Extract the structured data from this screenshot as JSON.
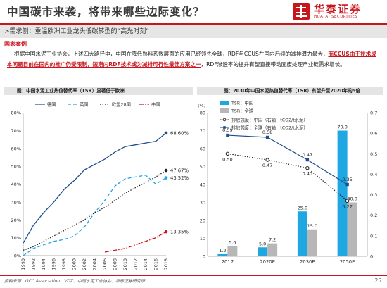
{
  "header": {
    "title": "中国碳市来袭，将带来哪些边际变化？",
    "logo_cn": "华泰证券",
    "logo_en": "HUATAI SECURITIES",
    "subheader": ">需求侧：重温欧洲工业龙头低碳转型的“高光时刻”"
  },
  "section": {
    "label": "国家案例",
    "para_1": "根据中国水泥工业协会，上述四大路径中，中国在降低熟料系数层面的应用已经领先全球，RDF与CCUS在国内后续的减排潜力最大，",
    "para_hl": "而CCUS由于技术成本问题目前在国内的推广仍受限制，短期内RDF技术或为减排可行性最佳方案之一",
    "para_2": "，RDF渗透率的提升有望直接带动固废处理产业链需求增长。"
  },
  "colors": {
    "red": "#c8161d",
    "navy": "#1f4e8c",
    "cyan": "#1ea7e1",
    "gray": "#b7b7b7",
    "black": "#222222"
  },
  "left_chart": {
    "title": "图：中国水泥工业热值替代率（TSR）显著低于欧洲"
  },
  "right_chart": {
    "title": "图：2030年中国水泥热值替代率（TSR）有望升至2020年的5倍"
  },
  "footer": {
    "source": "资料来源：GCC Association、VDZ、中国水泥工业协会、华泰证券研究所",
    "page": "25"
  },
  "chart_data": [
    {
      "type": "line",
      "title": "图：中国水泥工业热值替代率（TSR）显著低于欧洲",
      "x": [
        1990,
        1992,
        1994,
        1996,
        1998,
        2000,
        2002,
        2004,
        2006,
        2008,
        2010,
        2012,
        2014,
        2016,
        2018
      ],
      "ylim": [
        0,
        80
      ],
      "yticks": [
        "0%",
        "10%",
        "20%",
        "30%",
        "40%",
        "50%",
        "60%",
        "70%",
        "80%"
      ],
      "series": [
        {
          "name": "德国",
          "color": "#1f4e8c",
          "style": "solid",
          "values": [
            7,
            17,
            24,
            30,
            37,
            42,
            48,
            51,
            54,
            58,
            61,
            62,
            63,
            64,
            68.6
          ],
          "end_label": "68.60%"
        },
        {
          "name": "英国",
          "color": "#1ea7e1",
          "style": "dash",
          "values": [
            0,
            4,
            6,
            8,
            9,
            11,
            16,
            24,
            31,
            39,
            43,
            44,
            45,
            40,
            43.52
          ],
          "end_label": "43.52%"
        },
        {
          "name": "欧盟28国",
          "color": "#222222",
          "style": "dot",
          "values": [
            3,
            5,
            8,
            11,
            14,
            17,
            20,
            24,
            27,
            31,
            35,
            38,
            41,
            44,
            47.67
          ],
          "end_label": "47.67%"
        },
        {
          "name": "中国",
          "color": "#c8161d",
          "style": "dashdot",
          "values": [
            null,
            null,
            null,
            null,
            null,
            null,
            null,
            null,
            2,
            3,
            4,
            6,
            8,
            10,
            13.35
          ],
          "end_label": "13.35%"
        }
      ]
    },
    {
      "type": "bar",
      "title": "图：2030年中国水泥热值替代率（TSR）有望升至2020年的5倍",
      "categories": [
        "2017",
        "2020E",
        "2030E",
        "2050E"
      ],
      "ylim": [
        0,
        80
      ],
      "yticks": [
        "0",
        "10",
        "20",
        "30",
        "40",
        "50",
        "60",
        "70",
        "80"
      ],
      "y2lim": [
        0,
        0.7
      ],
      "y2ticks": [
        "0",
        "0.1",
        "0.2",
        "0.3",
        "0.4",
        "0.5",
        "0.6",
        "0.7"
      ],
      "ylabel": "(%)",
      "series": [
        {
          "name": "TSR：中国",
          "kind": "bar",
          "color": "#1ea7e1",
          "values": [
            1.2,
            5.0,
            25.0,
            70.0
          ],
          "labels": [
            "1.2",
            "5.0",
            "25.0",
            "70.0"
          ]
        },
        {
          "name": "TSR：全球",
          "kind": "bar",
          "color": "#b7b7b7",
          "values": [
            5.6,
            7.2,
            15.0,
            30.0
          ],
          "labels": [
            "5.6",
            "7.2",
            "15.0",
            "30.0"
          ]
        },
        {
          "name": "排放强度：中国（右轴，tCO2/t水泥）",
          "kind": "line",
          "color": "#222222",
          "style": "dot",
          "values": [
            0.5,
            0.47,
            0.43,
            0.27
          ],
          "labels": [
            "0.50",
            "0.47",
            "0.43",
            "0.27"
          ]
        },
        {
          "name": "排放强度：全球（右轴，tCO2/t水泥）",
          "kind": "line",
          "color": "#1f4e8c",
          "style": "solid",
          "values": [
            0.59,
            0.58,
            0.47,
            0.35
          ],
          "labels": [
            "0.59",
            "0.58",
            "0.47",
            "0.35"
          ]
        }
      ]
    }
  ]
}
